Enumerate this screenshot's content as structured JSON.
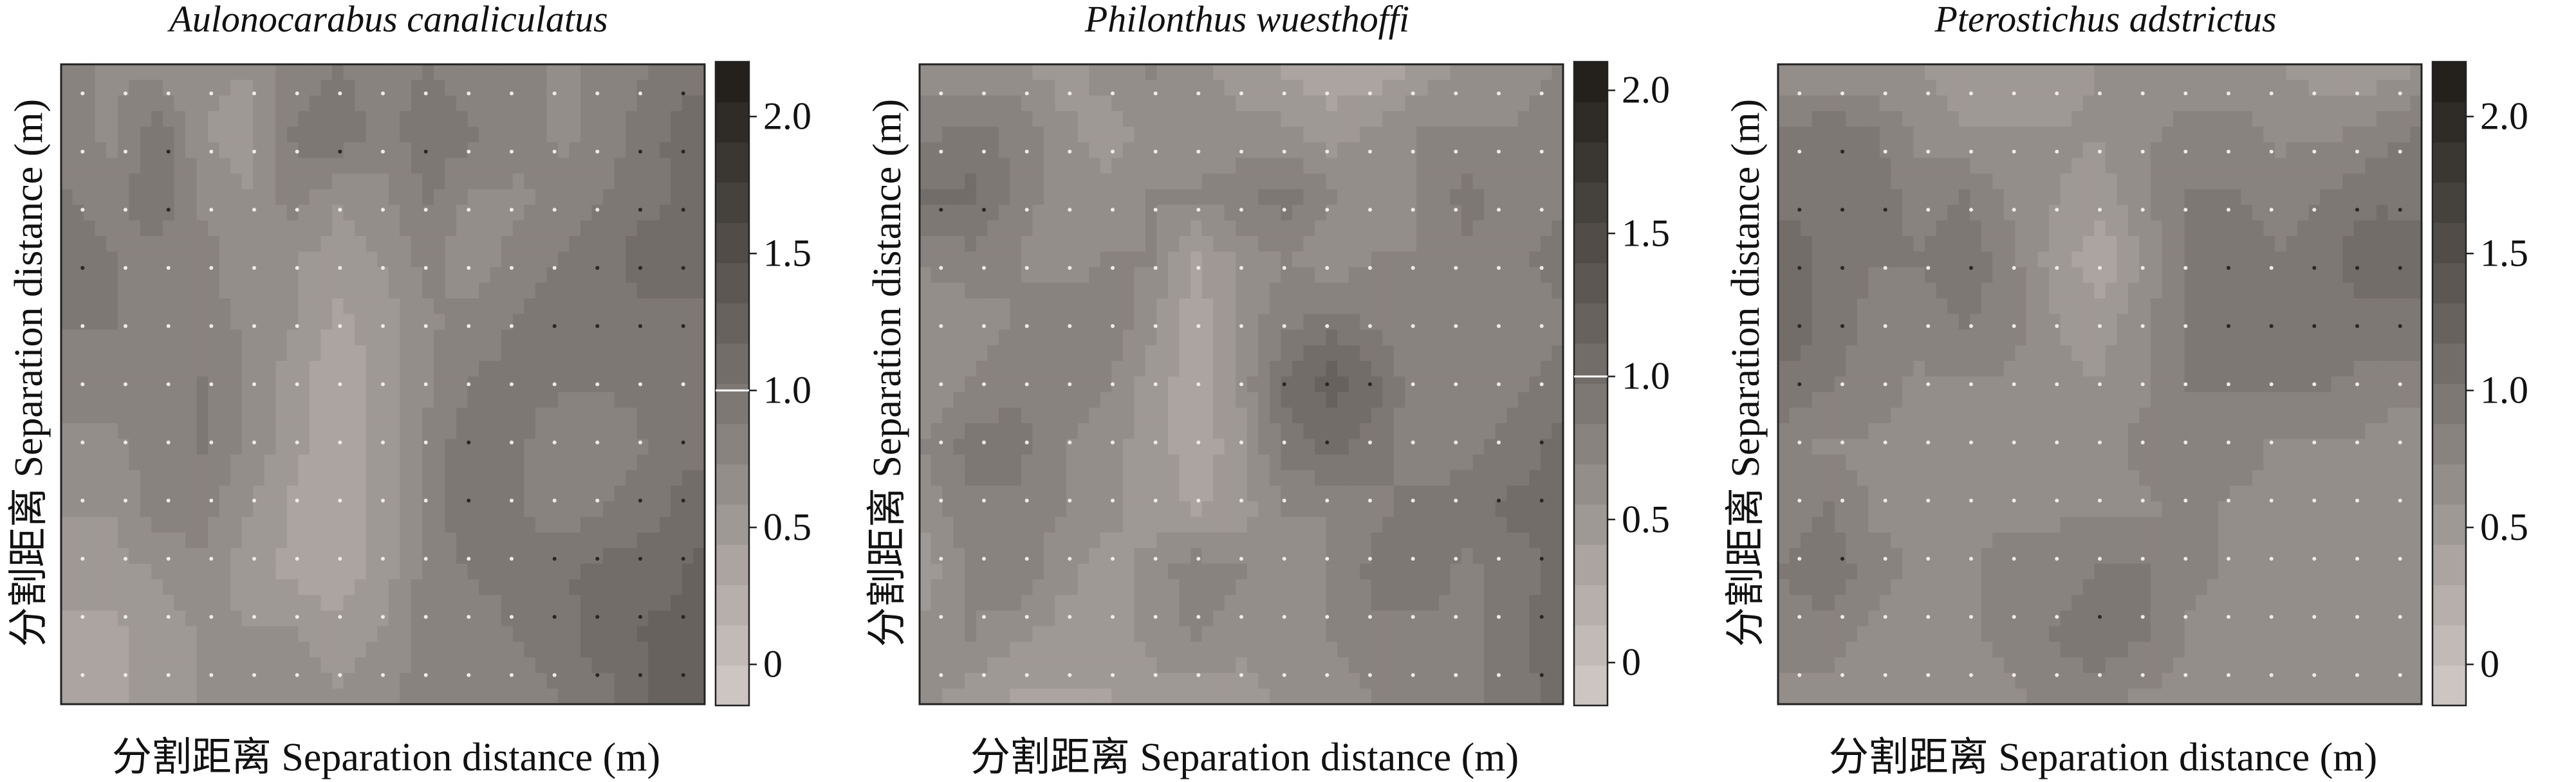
{
  "xlabel": "分割距离 Separation distance (m)",
  "ylabel": "分割距离 Separation distance (m)",
  "colors": {
    "low": "#d2cbc6",
    "high": "#1e1a17",
    "frame": "#222222"
  },
  "chart_data": [
    {
      "type": "heatmap",
      "title": "Aulonocarabus canaliculatus",
      "xlabel": "分割距离 Separation distance (m)",
      "ylabel": "分割距离 Separation distance (m)",
      "colorbar": {
        "min": -0.15,
        "max": 2.2,
        "ticks": [
          0,
          0.5,
          1.0,
          1.5,
          2.0
        ],
        "tick_labels": [
          "0",
          "0.5",
          "1.0",
          "1.5",
          "2.0"
        ],
        "marked_value": 1.0
      },
      "grid_values": [
        [
          0.8,
          0.7,
          0.7,
          0.6,
          0.6,
          0.8,
          0.9,
          0.8,
          0.9,
          0.8,
          0.8,
          0.7,
          0.8,
          0.9,
          1.0
        ],
        [
          0.8,
          0.7,
          1.0,
          0.6,
          0.5,
          0.9,
          1.0,
          0.8,
          1.0,
          0.9,
          0.8,
          0.7,
          0.8,
          1.0,
          1.1
        ],
        [
          0.9,
          0.8,
          1.0,
          0.7,
          0.6,
          0.8,
          0.6,
          0.7,
          0.9,
          0.7,
          0.7,
          0.8,
          0.9,
          1.0,
          1.1
        ],
        [
          1.0,
          0.9,
          0.8,
          0.8,
          0.6,
          0.6,
          0.5,
          0.6,
          0.8,
          0.6,
          0.8,
          0.9,
          1.0,
          1.1,
          1.1
        ],
        [
          0.9,
          0.9,
          0.8,
          0.8,
          0.7,
          0.6,
          0.4,
          0.5,
          0.7,
          0.8,
          0.9,
          1.0,
          1.0,
          1.0,
          1.0
        ],
        [
          0.8,
          0.8,
          0.8,
          0.9,
          0.7,
          0.5,
          0.3,
          0.5,
          0.7,
          0.9,
          0.9,
          0.9,
          0.9,
          0.9,
          0.9
        ],
        [
          0.7,
          0.7,
          0.8,
          0.9,
          0.7,
          0.5,
          0.3,
          0.5,
          0.8,
          1.0,
          0.9,
          0.8,
          0.8,
          0.9,
          1.0
        ],
        [
          0.6,
          0.6,
          0.8,
          0.8,
          0.6,
          0.4,
          0.3,
          0.5,
          0.8,
          1.0,
          0.9,
          0.8,
          0.9,
          1.0,
          1.1
        ],
        [
          0.5,
          0.5,
          0.6,
          0.7,
          0.5,
          0.4,
          0.3,
          0.5,
          0.8,
          0.9,
          0.9,
          1.0,
          1.1,
          1.1,
          1.2
        ],
        [
          0.4,
          0.4,
          0.5,
          0.6,
          0.6,
          0.6,
          0.5,
          0.6,
          0.8,
          0.8,
          0.9,
          1.0,
          1.1,
          1.2,
          1.2
        ],
        [
          0.4,
          0.4,
          0.5,
          0.6,
          0.7,
          0.7,
          0.6,
          0.7,
          0.8,
          0.8,
          0.8,
          0.9,
          1.0,
          1.2,
          1.3
        ]
      ]
    },
    {
      "type": "heatmap",
      "title": "Philonthus wuesthoffi",
      "xlabel": "分割距离 Separation distance (m)",
      "ylabel": "分割距离 Separation distance (m)",
      "colorbar": {
        "min": -0.15,
        "max": 2.1,
        "ticks": [
          0,
          0.5,
          1.0,
          1.5,
          2.0
        ],
        "tick_labels": [
          "0",
          "0.5",
          "1.0",
          "1.5",
          "2.0"
        ],
        "marked_value": 1.0
      },
      "grid_values": [
        [
          0.6,
          0.6,
          0.6,
          0.5,
          0.6,
          0.7,
          0.6,
          0.5,
          0.4,
          0.3,
          0.3,
          0.5,
          0.6,
          0.6,
          0.7
        ],
        [
          0.8,
          0.9,
          0.8,
          0.6,
          0.5,
          0.6,
          0.6,
          0.6,
          0.6,
          0.5,
          0.6,
          0.7,
          0.7,
          0.7,
          0.8
        ],
        [
          1.0,
          1.0,
          0.8,
          0.6,
          0.6,
          0.7,
          0.7,
          0.8,
          0.9,
          0.7,
          0.6,
          0.7,
          0.9,
          0.7,
          0.8
        ],
        [
          0.7,
          0.8,
          0.7,
          0.6,
          0.7,
          0.7,
          0.4,
          0.6,
          0.7,
          0.6,
          0.7,
          0.7,
          0.8,
          0.8,
          0.9
        ],
        [
          0.6,
          0.6,
          0.7,
          0.8,
          0.8,
          0.6,
          0.3,
          0.6,
          0.8,
          0.9,
          0.8,
          0.7,
          0.7,
          0.7,
          0.8
        ],
        [
          0.6,
          0.7,
          0.8,
          0.8,
          0.7,
          0.5,
          0.3,
          0.6,
          1.0,
          1.2,
          1.0,
          0.7,
          0.7,
          0.8,
          0.9
        ],
        [
          0.7,
          0.9,
          0.9,
          0.7,
          0.6,
          0.5,
          0.3,
          0.5,
          0.9,
          1.0,
          0.9,
          0.7,
          0.8,
          0.9,
          1.0
        ],
        [
          0.6,
          0.8,
          0.8,
          0.7,
          0.6,
          0.5,
          0.4,
          0.5,
          0.7,
          0.7,
          0.8,
          0.9,
          0.9,
          1.0,
          1.0
        ],
        [
          0.5,
          0.7,
          0.8,
          0.6,
          0.5,
          0.6,
          0.8,
          0.7,
          0.6,
          0.7,
          0.9,
          0.9,
          0.8,
          0.9,
          1.0
        ],
        [
          0.6,
          0.7,
          0.6,
          0.5,
          0.5,
          0.6,
          0.7,
          0.6,
          0.6,
          0.7,
          0.8,
          0.8,
          0.8,
          0.9,
          1.1
        ],
        [
          0.6,
          0.5,
          0.4,
          0.4,
          0.4,
          0.5,
          0.5,
          0.5,
          0.6,
          0.6,
          0.7,
          0.8,
          0.8,
          0.9,
          1.0
        ]
      ]
    },
    {
      "type": "heatmap",
      "title": "Pterostichus adstrictus",
      "xlabel": "分割距离 Separation distance (m)",
      "ylabel": "分割距离 Separation distance (m)",
      "colorbar": {
        "min": -0.15,
        "max": 2.2,
        "ticks": [
          0,
          0.5,
          1.0,
          1.5,
          2.0
        ],
        "tick_labels": [
          "0",
          "0.5",
          "1.0",
          "1.5",
          "2.0"
        ]
      },
      "grid_values": [
        [
          0.6,
          0.6,
          0.6,
          0.6,
          0.5,
          0.5,
          0.5,
          0.6,
          0.6,
          0.6,
          0.6,
          0.6,
          0.5,
          0.5,
          0.6
        ],
        [
          0.9,
          1.0,
          0.9,
          0.7,
          0.6,
          0.6,
          0.6,
          0.6,
          0.7,
          0.8,
          0.8,
          0.7,
          0.7,
          0.8,
          0.9
        ],
        [
          1.0,
          1.0,
          1.0,
          0.8,
          0.9,
          0.7,
          0.6,
          0.5,
          0.7,
          0.9,
          0.9,
          0.8,
          0.9,
          1.0,
          1.0
        ],
        [
          1.1,
          1.0,
          0.9,
          0.9,
          1.0,
          0.8,
          0.5,
          0.3,
          0.6,
          0.9,
          1.0,
          0.9,
          1.0,
          1.1,
          1.1
        ],
        [
          1.1,
          1.0,
          0.8,
          0.8,
          0.9,
          0.8,
          0.6,
          0.5,
          0.7,
          0.9,
          1.0,
          1.0,
          1.0,
          1.0,
          1.0
        ],
        [
          1.0,
          0.9,
          0.8,
          0.7,
          0.7,
          0.7,
          0.6,
          0.6,
          0.7,
          0.9,
          0.9,
          0.9,
          0.9,
          0.8,
          0.8
        ],
        [
          0.8,
          0.7,
          0.7,
          0.7,
          0.7,
          0.6,
          0.6,
          0.6,
          0.8,
          0.8,
          0.8,
          0.7,
          0.7,
          0.7,
          0.6
        ],
        [
          0.8,
          0.9,
          0.7,
          0.7,
          0.7,
          0.7,
          0.7,
          0.7,
          0.7,
          0.8,
          0.7,
          0.7,
          0.7,
          0.7,
          0.7
        ],
        [
          0.9,
          1.0,
          0.8,
          0.7,
          0.7,
          0.8,
          0.8,
          0.9,
          0.9,
          0.8,
          0.7,
          0.6,
          0.6,
          0.6,
          0.7
        ],
        [
          0.8,
          0.8,
          0.7,
          0.6,
          0.7,
          0.8,
          0.9,
          1.0,
          0.9,
          0.7,
          0.6,
          0.6,
          0.6,
          0.6,
          0.7
        ],
        [
          0.7,
          0.7,
          0.6,
          0.6,
          0.6,
          0.7,
          0.8,
          0.8,
          0.7,
          0.7,
          0.6,
          0.6,
          0.6,
          0.7,
          0.7
        ]
      ]
    }
  ]
}
